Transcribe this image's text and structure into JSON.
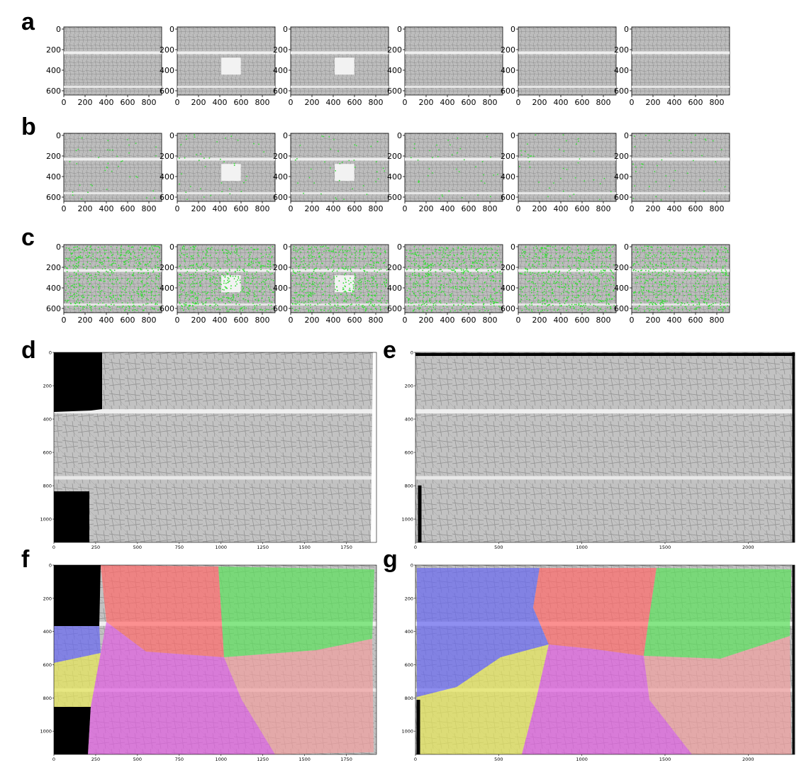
{
  "panels": [
    {
      "letter": "a",
      "x_ticks": [
        "0",
        "200",
        "400",
        "600",
        "800"
      ],
      "y_ticks": [
        "0",
        "200",
        "400",
        "600"
      ],
      "count": 6,
      "overlay": "none"
    },
    {
      "letter": "b",
      "x_ticks": [
        "0",
        "200",
        "400",
        "600",
        "800"
      ],
      "y_ticks": [
        "0",
        "200",
        "400",
        "600"
      ],
      "count": 6,
      "overlay": "sparse-keypoints"
    },
    {
      "letter": "c",
      "x_ticks": [
        "0",
        "200",
        "400",
        "600",
        "800"
      ],
      "y_ticks": [
        "0",
        "200",
        "400",
        "600"
      ],
      "count": 6,
      "overlay": "dense-keypoints"
    },
    {
      "letter": "d",
      "x_ticks": [
        "0",
        "250",
        "500",
        "750",
        "1000",
        "1250",
        "1500",
        "1750"
      ],
      "y_ticks": [
        "0",
        "200",
        "400",
        "600",
        "800",
        "1000"
      ],
      "overlay": "none"
    },
    {
      "letter": "e",
      "x_ticks": [
        "0",
        "500",
        "1000",
        "1500",
        "2000"
      ],
      "y_ticks": [
        "0",
        "200",
        "400",
        "600",
        "800",
        "1000"
      ],
      "overlay": "none"
    },
    {
      "letter": "f",
      "x_ticks": [
        "0",
        "250",
        "500",
        "750",
        "1000",
        "1250",
        "1500",
        "1750"
      ],
      "y_ticks": [
        "0",
        "200",
        "400",
        "600",
        "800",
        "1000"
      ],
      "overlay": "segmentation"
    },
    {
      "letter": "g",
      "x_ticks": [
        "0",
        "500",
        "1000",
        "1500",
        "2000"
      ],
      "y_ticks": [
        "0",
        "200",
        "400",
        "600",
        "800",
        "1000"
      ],
      "overlay": "segmentation"
    }
  ],
  "colors": {
    "keypoint": "#33dd33",
    "map_gray": "#b4b4b4",
    "region_red": "#ff6b6b",
    "region_green": "#5de05d",
    "region_blue": "#6a6af0",
    "region_yellow": "#e6e65a",
    "region_magenta": "#e060e0",
    "region_pink": "#f0a0a0",
    "mask_black": "#000000"
  }
}
